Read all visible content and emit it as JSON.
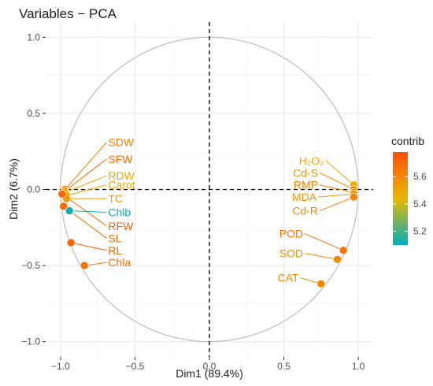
{
  "chart_data": {
    "type": "scatter",
    "title": "Variables − PCA",
    "xlabel": "Dim1 (89.4%)",
    "ylabel": "Dim2 (6.7%)",
    "xlim": [
      -1.1,
      1.1
    ],
    "ylim": [
      -1.1,
      1.1
    ],
    "xticks": [
      -1.0,
      -0.5,
      0.0,
      0.5,
      1.0
    ],
    "yticks": [
      -1.0,
      -0.5,
      0.0,
      0.5,
      1.0
    ],
    "xtick_labels": [
      "−1.0",
      "−0.5",
      "0.0",
      "0.5",
      "1.0"
    ],
    "ytick_labels": [
      "−1.0",
      "−0.5",
      "0.0",
      "0.5",
      "1.0"
    ],
    "grid": true,
    "correlation_circle": true,
    "legend": {
      "title": "contrib",
      "placement": "right",
      "range": [
        5.1,
        5.78
      ],
      "ticks": [
        5.2,
        5.4,
        5.6
      ],
      "tick_labels": [
        "5.2",
        "5.4",
        "5.6"
      ],
      "colors": [
        "#00AFBB",
        "#E7B800",
        "#FC4E07"
      ]
    },
    "points": [
      {
        "label": "SDW",
        "x": -0.97,
        "y": 0.0,
        "contrib": 5.62,
        "label_x": -0.68,
        "label_y": 0.31
      },
      {
        "label": "SFW",
        "x": -0.97,
        "y": -0.01,
        "contrib": 5.68,
        "label_x": -0.68,
        "label_y": 0.2
      },
      {
        "label": "RDW",
        "x": -0.97,
        "y": -0.02,
        "contrib": 5.48,
        "label_x": -0.68,
        "label_y": 0.09
      },
      {
        "label": "Carot",
        "x": -0.96,
        "y": -0.04,
        "contrib": 5.5,
        "label_x": -0.68,
        "label_y": 0.03
      },
      {
        "label": "TC",
        "x": -0.96,
        "y": -0.06,
        "contrib": 5.53,
        "label_x": -0.68,
        "label_y": -0.06
      },
      {
        "label": "Chlb",
        "x": -0.94,
        "y": -0.14,
        "contrib": 5.12,
        "label_x": -0.68,
        "label_y": -0.15
      },
      {
        "label": "RFW",
        "x": -0.99,
        "y": -0.03,
        "contrib": 5.7,
        "label_x": -0.68,
        "label_y": -0.24
      },
      {
        "label": "SL",
        "x": -0.98,
        "y": -0.11,
        "contrib": 5.68,
        "label_x": -0.68,
        "label_y": -0.32
      },
      {
        "label": "RL",
        "x": -0.93,
        "y": -0.35,
        "contrib": 5.7,
        "label_x": -0.68,
        "label_y": -0.4
      },
      {
        "label": "Chla",
        "x": -0.84,
        "y": -0.5,
        "contrib": 5.66,
        "label_x": -0.68,
        "label_y": -0.48
      },
      {
        "label": "H₂O₂",
        "x": 0.97,
        "y": 0.03,
        "contrib": 5.48,
        "label_x": 0.77,
        "label_y": 0.19
      },
      {
        "label": "Cd-S",
        "x": 0.97,
        "y": 0.0,
        "contrib": 5.55,
        "label_x": 0.73,
        "label_y": 0.11
      },
      {
        "label": "RMP",
        "x": 0.97,
        "y": -0.02,
        "contrib": 5.62,
        "label_x": 0.73,
        "label_y": 0.03
      },
      {
        "label": "MDA",
        "x": 0.97,
        "y": -0.03,
        "contrib": 5.55,
        "label_x": 0.72,
        "label_y": -0.05
      },
      {
        "label": "Cd-R",
        "x": 0.97,
        "y": -0.05,
        "contrib": 5.6,
        "label_x": 0.73,
        "label_y": -0.14
      },
      {
        "label": "POD",
        "x": 0.9,
        "y": -0.4,
        "contrib": 5.66,
        "label_x": 0.63,
        "label_y": -0.29
      },
      {
        "label": "SOD",
        "x": 0.86,
        "y": -0.46,
        "contrib": 5.58,
        "label_x": 0.63,
        "label_y": -0.42
      },
      {
        "label": "CAT",
        "x": 0.75,
        "y": -0.62,
        "contrib": 5.6,
        "label_x": 0.6,
        "label_y": -0.58
      }
    ]
  }
}
